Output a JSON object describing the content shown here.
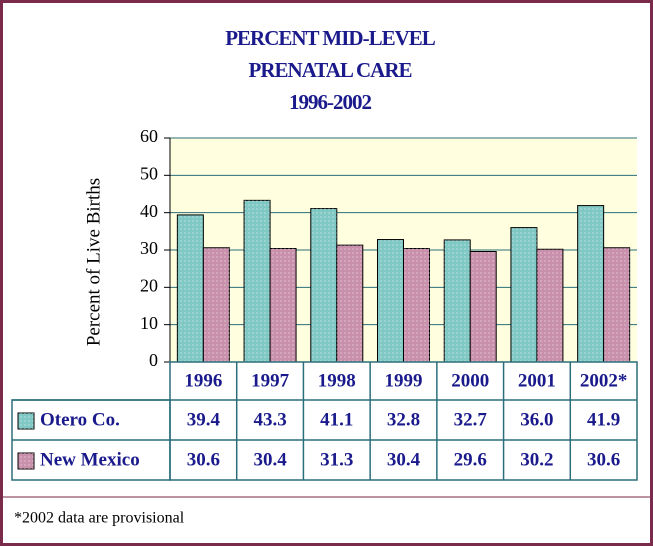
{
  "chart_data": {
    "type": "bar",
    "title": [
      "PERCENT MID-LEVEL",
      "PRENATAL CARE"
    ],
    "subtitle": "1996-2002",
    "y_label": "Percent of Live Births",
    "categories": [
      "1996",
      "1997",
      "1998",
      "1999",
      "2000",
      "2001",
      "2002*"
    ],
    "series": [
      {
        "name": "Otero Co.",
        "color": "#80c8c4",
        "values": [
          39.4,
          43.3,
          41.1,
          32.8,
          32.7,
          36.0,
          41.9
        ],
        "value_labels": [
          "39.4",
          "43.3",
          "41.1",
          "32.8",
          "32.7",
          "36.0",
          "41.9"
        ]
      },
      {
        "name": "New Mexico",
        "color": "#c890aa",
        "values": [
          30.6,
          30.4,
          31.3,
          30.4,
          29.6,
          30.2,
          30.6
        ],
        "value_labels": [
          "30.6",
          "30.4",
          "31.3",
          "30.4",
          "29.6",
          "30.2",
          "30.6"
        ]
      }
    ],
    "ylim": [
      0,
      60
    ],
    "yticks": [
      0,
      10,
      20,
      30,
      40,
      50,
      60
    ],
    "grid": true,
    "footnote": "*2002 data are provisional"
  }
}
